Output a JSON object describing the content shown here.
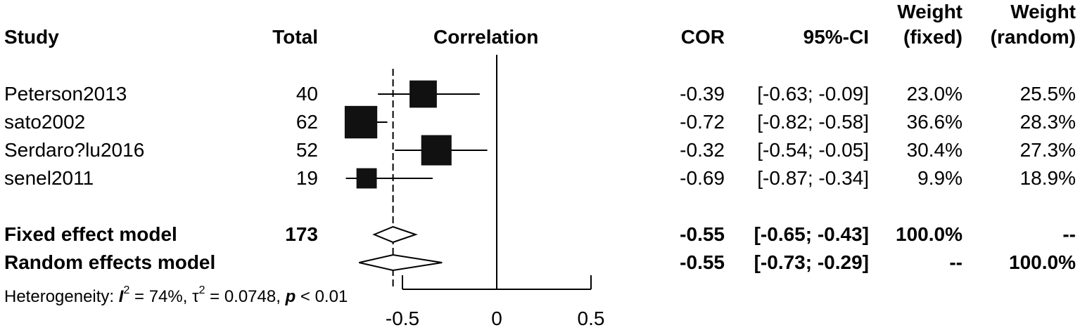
{
  "headers": {
    "study": "Study",
    "total": "Total",
    "correlation": "Correlation",
    "cor": "COR",
    "ci": "95%-CI",
    "weight_fixed_1": "Weight",
    "weight_fixed_2": "(fixed)",
    "weight_random_1": "Weight",
    "weight_random_2": "(random)"
  },
  "studies": [
    {
      "name": "Peterson2013",
      "total": "40",
      "cor": "-0.39",
      "ci": "[-0.63; -0.09]",
      "w_fixed": "23.0%",
      "w_random": "25.5%"
    },
    {
      "name": "sato2002",
      "total": "62",
      "cor": "-0.72",
      "ci": "[-0.82; -0.58]",
      "w_fixed": "36.6%",
      "w_random": "28.3%"
    },
    {
      "name": "Serdaro?lu2016",
      "total": "52",
      "cor": "-0.32",
      "ci": "[-0.54; -0.05]",
      "w_fixed": "30.4%",
      "w_random": "27.3%"
    },
    {
      "name": "senel2011",
      "total": "19",
      "cor": "-0.69",
      "ci": "[-0.87; -0.34]",
      "w_fixed": "9.9%",
      "w_random": "18.9%"
    }
  ],
  "models": [
    {
      "name": "Fixed effect model",
      "total": "173",
      "cor": "-0.55",
      "ci": "[-0.65; -0.43]",
      "w_fixed": "100.0%",
      "w_random": "--"
    },
    {
      "name": "Random effects model",
      "total": "",
      "cor": "-0.55",
      "ci": "[-0.73; -0.29]",
      "w_fixed": "--",
      "w_random": "100.0%"
    }
  ],
  "heterogeneity": {
    "prefix": "Heterogeneity: ",
    "i_symbol": "I",
    "i_value": " = 74%, ",
    "tau_symbol": "τ",
    "tau_value": " = 0.0748, ",
    "p_symbol": "p",
    "p_value": " < 0.01"
  },
  "chart_data": {
    "type": "forest",
    "xlabel": "",
    "xlim": [
      -0.8,
      0.5
    ],
    "xticks": [
      -0.5,
      0,
      0.5
    ],
    "tick_labels": [
      "-0.5",
      "0",
      "0.5"
    ],
    "null_line": 0,
    "summary_line": -0.55,
    "study_estimates": [
      {
        "label": "Peterson2013",
        "est": -0.39,
        "lo": -0.63,
        "hi": -0.09,
        "weight": 23.0
      },
      {
        "label": "sato2002",
        "est": -0.72,
        "lo": -0.82,
        "hi": -0.58,
        "weight": 36.6
      },
      {
        "label": "Serdaro?lu2016",
        "est": -0.32,
        "lo": -0.54,
        "hi": -0.05,
        "weight": 30.4
      },
      {
        "label": "senel2011",
        "est": -0.69,
        "lo": -0.87,
        "hi": -0.34,
        "weight": 9.9
      }
    ],
    "summary_estimates": [
      {
        "label": "Fixed effect model",
        "est": -0.55,
        "lo": -0.65,
        "hi": -0.43
      },
      {
        "label": "Random effects model",
        "est": -0.55,
        "lo": -0.73,
        "hi": -0.29
      }
    ]
  }
}
